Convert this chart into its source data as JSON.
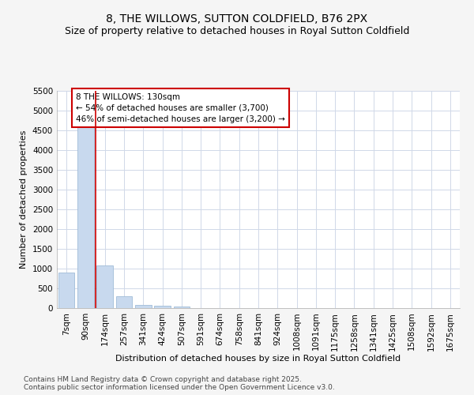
{
  "title": "8, THE WILLOWS, SUTTON COLDFIELD, B76 2PX",
  "subtitle": "Size of property relative to detached houses in Royal Sutton Coldfield",
  "xlabel": "Distribution of detached houses by size in Royal Sutton Coldfield",
  "ylabel": "Number of detached properties",
  "footnote": "Contains HM Land Registry data © Crown copyright and database right 2025.\nContains public sector information licensed under the Open Government Licence v3.0.",
  "categories": [
    "7sqm",
    "90sqm",
    "174sqm",
    "257sqm",
    "341sqm",
    "424sqm",
    "507sqm",
    "591sqm",
    "674sqm",
    "758sqm",
    "841sqm",
    "924sqm",
    "1008sqm",
    "1091sqm",
    "1175sqm",
    "1258sqm",
    "1341sqm",
    "1425sqm",
    "1508sqm",
    "1592sqm",
    "1675sqm"
  ],
  "values": [
    900,
    4580,
    1080,
    295,
    85,
    70,
    50,
    0,
    0,
    0,
    0,
    0,
    0,
    0,
    0,
    0,
    0,
    0,
    0,
    0,
    0
  ],
  "bar_color": "#c8d9ee",
  "bar_edge_color": "#a0bcd8",
  "red_line_x": 1.5,
  "annotation_title": "8 THE WILLOWS: 130sqm",
  "annotation_line1": "← 54% of detached houses are smaller (3,700)",
  "annotation_line2": "46% of semi-detached houses are larger (3,200) →",
  "annotation_box_color": "#cc0000",
  "annotation_box_fill": "#ffffff",
  "ylim": [
    0,
    5500
  ],
  "yticks": [
    0,
    500,
    1000,
    1500,
    2000,
    2500,
    3000,
    3500,
    4000,
    4500,
    5000,
    5500
  ],
  "bg_color": "#f5f5f5",
  "plot_bg_color": "#ffffff",
  "grid_color": "#d0d8e8",
  "title_fontsize": 10,
  "subtitle_fontsize": 9,
  "axis_label_fontsize": 8,
  "tick_fontsize": 7.5,
  "footnote_fontsize": 6.5
}
